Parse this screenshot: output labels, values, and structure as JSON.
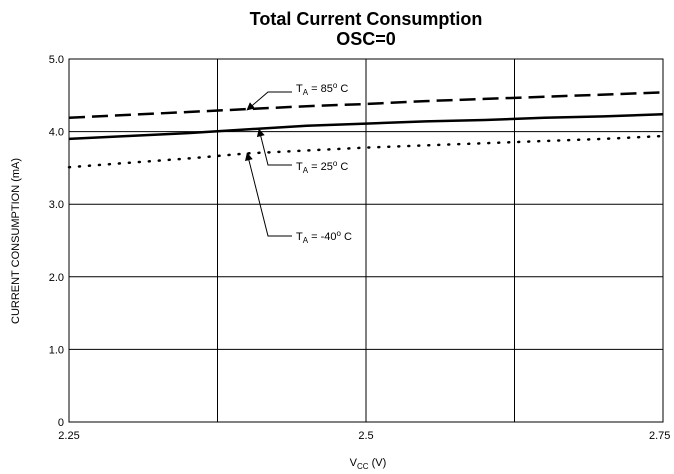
{
  "chart_data": {
    "type": "line",
    "title": "Total Current Consumption",
    "subtitle": "OSC=0",
    "xlabel": "V",
    "xlabel_sub": "CC",
    "xlabel_unit": " (V)",
    "ylabel": "CURRENT CONSUMPTION (mA)",
    "xlim": [
      2.25,
      2.75
    ],
    "ylim": [
      0,
      5.0
    ],
    "x_ticks": [
      2.25,
      2.5,
      2.75
    ],
    "x_tick_labels": [
      "2.25",
      "2.5",
      "2.75"
    ],
    "y_ticks": [
      0,
      1.0,
      2.0,
      3.0,
      4.0,
      5.0
    ],
    "y_tick_labels": [
      "0",
      "1.0",
      "2.0",
      "3.0",
      "4.0",
      "5.0"
    ],
    "grid": true,
    "series": [
      {
        "style": "dashed",
        "x": [
          2.25,
          2.3,
          2.35,
          2.4,
          2.45,
          2.5,
          2.55,
          2.6,
          2.65,
          2.7,
          2.75
        ],
        "y": [
          4.19,
          4.23,
          4.27,
          4.31,
          4.35,
          4.38,
          4.42,
          4.45,
          4.48,
          4.51,
          4.54
        ]
      },
      {
        "style": "solid",
        "x": [
          2.25,
          2.3,
          2.35,
          2.4,
          2.45,
          2.5,
          2.55,
          2.6,
          2.65,
          2.7,
          2.75
        ],
        "y": [
          3.9,
          3.94,
          3.98,
          4.03,
          4.08,
          4.11,
          4.14,
          4.16,
          4.19,
          4.21,
          4.24
        ]
      },
      {
        "style": "dotted",
        "x": [
          2.25,
          2.3,
          2.35,
          2.4,
          2.45,
          2.5,
          2.55,
          2.6,
          2.65,
          2.7,
          2.75
        ],
        "y": [
          3.51,
          3.57,
          3.63,
          3.7,
          3.74,
          3.78,
          3.81,
          3.84,
          3.87,
          3.9,
          3.94
        ]
      }
    ],
    "annotations": [
      {
        "label": "T",
        "sub": "A",
        "value": " = 85",
        "sup": "o",
        "unit": " C",
        "series_index": 0,
        "point": [
          2.4,
          4.3
        ]
      },
      {
        "label": "T",
        "sub": "A",
        "value": " = 25",
        "sup": "o",
        "unit": " C",
        "series_index": 1,
        "point": [
          2.41,
          4.03
        ]
      },
      {
        "label": "T",
        "sub": "A",
        "value": " = -40",
        "sup": "o",
        "unit": " C",
        "series_index": 2,
        "point": [
          2.4,
          3.7
        ]
      }
    ]
  }
}
